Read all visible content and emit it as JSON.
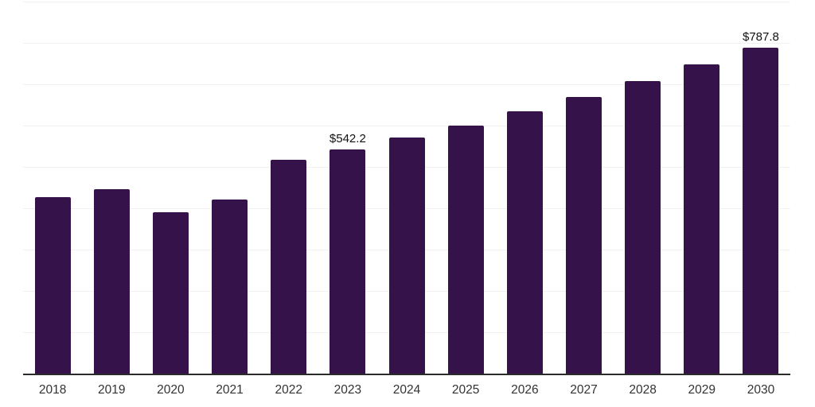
{
  "chart_data": {
    "type": "bar",
    "title": "",
    "xlabel": "",
    "ylabel": "",
    "categories": [
      "2018",
      "2019",
      "2020",
      "2021",
      "2022",
      "2023",
      "2024",
      "2025",
      "2026",
      "2027",
      "2028",
      "2029",
      "2030"
    ],
    "values": [
      427,
      446,
      390,
      421,
      517,
      542.2,
      571,
      600,
      634,
      669,
      707,
      748,
      787.8
    ],
    "data_labels": [
      "",
      "",
      "",
      "",
      "",
      "$542.2",
      "",
      "",
      "",
      "",
      "",
      "",
      "$787.8"
    ],
    "ylim": [
      0,
      900
    ],
    "gridline_step": 100,
    "grid": "horizontal-only",
    "y_axis_tick_labels_visible": false,
    "legend_position": "none",
    "colors": {
      "bar": "#35124A",
      "gridline": "#F1F1F1",
      "axis_line": "#2B2B2B",
      "tick_label": "#333333",
      "data_label": "#111111",
      "background": "#FFFFFF"
    }
  }
}
